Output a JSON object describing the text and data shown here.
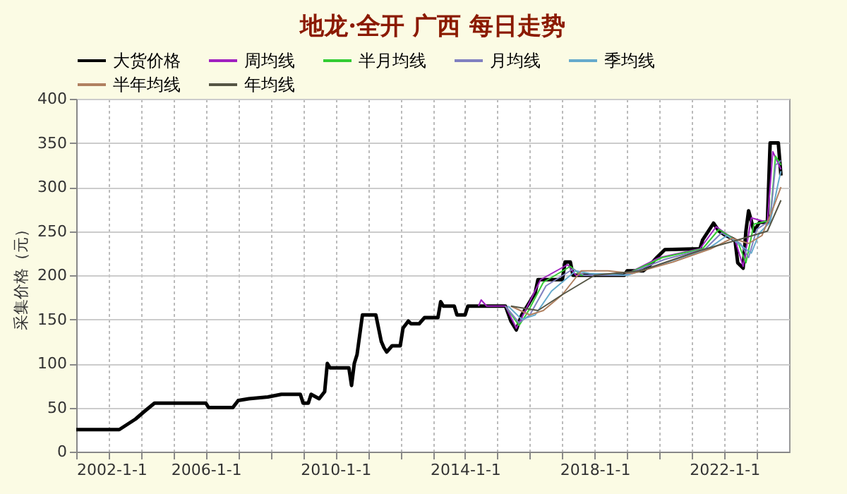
{
  "chart_data": {
    "type": "line",
    "title": "地龙·全开 广西 每日走势",
    "ylabel": "采集价格（元）",
    "legend": "top",
    "grid": true,
    "marker": "none",
    "line_style": "solid",
    "xlim": [
      "2002-01-01",
      "2024-01-01"
    ],
    "xticks": [
      {
        "value": "2002-01-01",
        "label": "2002-1-1"
      },
      {
        "value": "2003-01-01",
        "label": null
      },
      {
        "value": "2004-01-01",
        "label": null
      },
      {
        "value": "2005-01-01",
        "label": null
      },
      {
        "value": "2006-01-01",
        "label": "2006-1-1"
      },
      {
        "value": "2007-01-01",
        "label": null
      },
      {
        "value": "2008-01-01",
        "label": null
      },
      {
        "value": "2009-01-01",
        "label": null
      },
      {
        "value": "2010-01-01",
        "label": "2010-1-1"
      },
      {
        "value": "2011-01-01",
        "label": null
      },
      {
        "value": "2012-01-01",
        "label": null
      },
      {
        "value": "2013-01-01",
        "label": null
      },
      {
        "value": "2014-01-01",
        "label": "2014-1-1"
      },
      {
        "value": "2015-01-01",
        "label": null
      },
      {
        "value": "2016-01-01",
        "label": null
      },
      {
        "value": "2017-01-01",
        "label": null
      },
      {
        "value": "2018-01-01",
        "label": "2018-1-1"
      },
      {
        "value": "2019-01-01",
        "label": null
      },
      {
        "value": "2020-01-01",
        "label": null
      },
      {
        "value": "2021-01-01",
        "label": null
      },
      {
        "value": "2022-01-01",
        "label": "2022-1-1"
      },
      {
        "value": "2023-01-01",
        "label": null
      }
    ],
    "ylim": [
      0,
      400
    ],
    "yticks": [
      0,
      50,
      100,
      150,
      200,
      250,
      300,
      350,
      400
    ],
    "series": [
      {
        "name": "大货价格",
        "color": "#000000",
        "x": [
          "2002-01",
          "2003-05",
          "2003-11",
          "2004-02",
          "2004-06",
          "2006-01",
          "2006-02",
          "2006-11",
          "2007-01",
          "2007-05",
          "2007-12",
          "2008-05",
          "2008-12",
          "2009-01",
          "2009-03",
          "2009-04",
          "2009-07",
          "2009-09",
          "2009-10",
          "2009-11",
          "2010-06",
          "2010-07",
          "2010-08",
          "2010-09",
          "2010-11",
          "2011-04",
          "2011-06",
          "2011-07",
          "2011-08",
          "2011-10",
          "2012-01",
          "2012-02",
          "2012-04",
          "2012-05",
          "2012-08",
          "2012-10",
          "2013-03",
          "2013-04",
          "2013-05",
          "2013-09",
          "2013-10",
          "2014-01",
          "2014-02",
          "2015-04",
          "2015-06",
          "2015-08",
          "2015-10",
          "2016-01",
          "2016-03",
          "2016-04",
          "2017-01",
          "2017-02",
          "2017-04",
          "2017-05",
          "2018-12",
          "2019-01",
          "2019-07",
          "2019-09",
          "2019-12",
          "2020-03",
          "2021-04",
          "2021-05",
          "2021-09",
          "2021-11",
          "2022-01",
          "2022-05",
          "2022-06",
          "2022-08",
          "2022-09",
          "2022-10",
          "2022-12",
          "2023-02",
          "2023-05",
          "2023-06",
          "2023-09",
          "2023-10"
        ],
        "values": [
          25,
          25,
          37,
          45,
          55,
          55,
          50,
          50,
          58,
          60,
          62,
          65,
          65,
          55,
          55,
          65,
          60,
          68,
          100,
          95,
          95,
          75,
          100,
          110,
          155,
          155,
          125,
          118,
          113,
          120,
          120,
          140,
          148,
          145,
          145,
          152,
          152,
          170,
          165,
          165,
          155,
          155,
          165,
          165,
          148,
          138,
          155,
          170,
          180,
          195,
          195,
          215,
          215,
          200,
          200,
          205,
          205,
          210,
          220,
          229,
          230,
          240,
          259,
          250,
          246,
          240,
          214,
          208,
          250,
          273,
          250,
          260,
          260,
          350,
          350,
          313
        ]
      },
      {
        "name": "周均线",
        "color": "#a020c0",
        "x": [
          "2014-06",
          "2014-07",
          "2014-09",
          "2015-04",
          "2015-08",
          "2015-11",
          "2016-05",
          "2017-03",
          "2017-06",
          "2018-12",
          "2020-01",
          "2021-04",
          "2021-10",
          "2022-05",
          "2022-08",
          "2022-11",
          "2023-05",
          "2023-07",
          "2023-10"
        ],
        "values": [
          165,
          172,
          165,
          165,
          140,
          158,
          195,
          212,
          200,
          200,
          220,
          230,
          255,
          240,
          210,
          265,
          260,
          340,
          320
        ]
      },
      {
        "name": "半月均线",
        "color": "#33cc33",
        "x": [
          "2015-04",
          "2015-09",
          "2015-12",
          "2016-06",
          "2017-04",
          "2017-08",
          "2018-12",
          "2020-02",
          "2021-05",
          "2021-11",
          "2022-06",
          "2022-09",
          "2022-12",
          "2023-06",
          "2023-08",
          "2023-10"
        ],
        "values": [
          165,
          143,
          157,
          192,
          210,
          200,
          200,
          220,
          230,
          252,
          238,
          214,
          258,
          262,
          335,
          325
        ]
      },
      {
        "name": "月均线",
        "color": "#8080c0",
        "x": [
          "2015-04",
          "2015-09",
          "2016-01",
          "2016-07",
          "2017-05",
          "2017-09",
          "2018-12",
          "2020-03",
          "2021-06",
          "2021-12",
          "2022-07",
          "2022-10",
          "2023-01",
          "2023-06",
          "2023-08",
          "2023-10"
        ],
        "values": [
          165,
          146,
          155,
          188,
          207,
          200,
          200,
          218,
          230,
          248,
          236,
          220,
          252,
          262,
          325,
          330
        ]
      },
      {
        "name": "季均线",
        "color": "#66aacc",
        "x": [
          "2015-05",
          "2015-10",
          "2016-03",
          "2016-09",
          "2017-06",
          "2017-11",
          "2019-01",
          "2020-04",
          "2021-07",
          "2022-02",
          "2022-08",
          "2022-11",
          "2023-02",
          "2023-06",
          "2023-09",
          "2023-10"
        ],
        "values": [
          165,
          150,
          155,
          182,
          205,
          202,
          200,
          215,
          230,
          245,
          232,
          225,
          248,
          260,
          305,
          318
        ]
      },
      {
        "name": "半年均线",
        "color": "#b08060",
        "x": [
          "2015-06",
          "2016-01",
          "2016-06",
          "2017-01",
          "2017-08",
          "2018-06",
          "2019-03",
          "2020-06",
          "2021-08",
          "2022-04",
          "2022-10",
          "2023-03",
          "2023-07",
          "2023-10"
        ],
        "values": [
          165,
          155,
          160,
          178,
          205,
          205,
          202,
          215,
          230,
          242,
          236,
          245,
          275,
          300
        ]
      },
      {
        "name": "年均线",
        "color": "#555544",
        "x": [
          "2015-06",
          "2016-04",
          "2017-01",
          "2018-01",
          "2019-06",
          "2021-04",
          "2022-06",
          "2023-05",
          "2023-10"
        ],
        "values": [
          165,
          160,
          178,
          200,
          205,
          228,
          240,
          250,
          285
        ]
      }
    ]
  }
}
